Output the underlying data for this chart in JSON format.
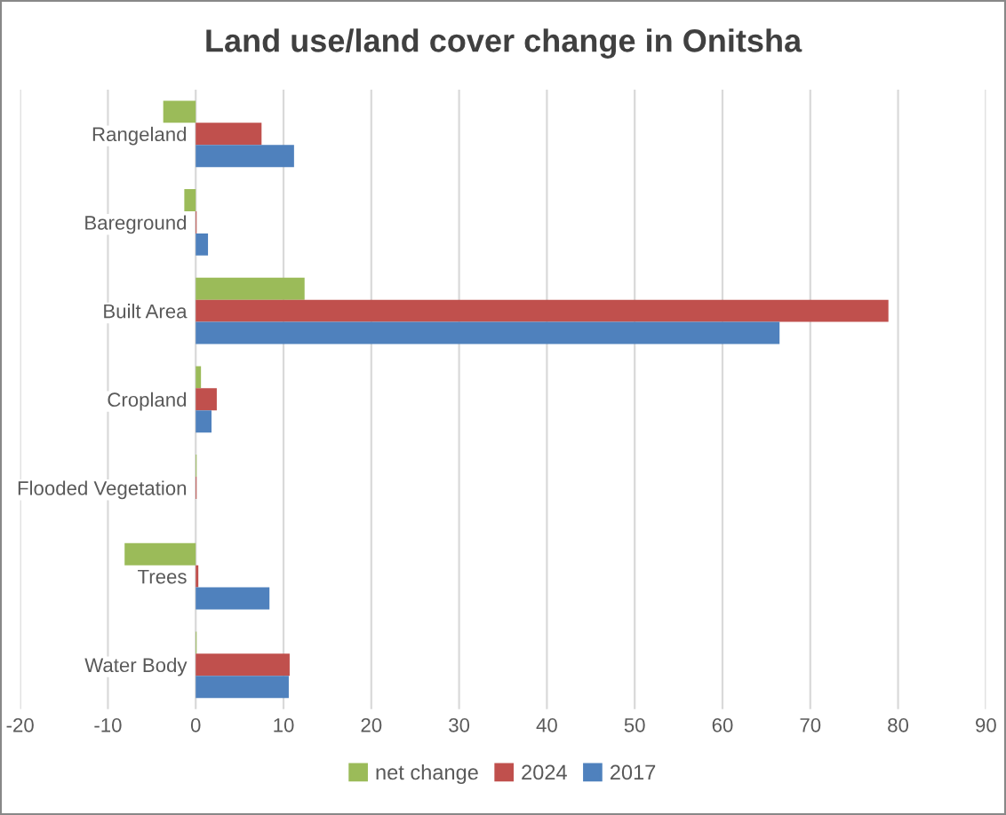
{
  "chart_data": {
    "type": "bar",
    "orientation": "horizontal",
    "title": "Land use/land cover change in Onitsha",
    "categories": [
      "Rangeland",
      "Bareground",
      "Built Area",
      "Cropland",
      "Flooded Vegetation",
      "Trees",
      "Water Body"
    ],
    "series": [
      {
        "name": "net change",
        "color": "#9bbb59",
        "values": [
          -3.7,
          -1.3,
          12.4,
          0.6,
          0.1,
          -8.1,
          0.1
        ]
      },
      {
        "name": "2024",
        "color": "#c0504d",
        "values": [
          7.5,
          0.1,
          78.9,
          2.4,
          0.1,
          0.3,
          10.7
        ]
      },
      {
        "name": "2017",
        "color": "#4f81bd",
        "values": [
          11.2,
          1.4,
          66.5,
          1.8,
          0.0,
          8.4,
          10.6
        ]
      }
    ],
    "xlim": [
      -20,
      90
    ],
    "xticks": [
      -20,
      -10,
      0,
      10,
      20,
      30,
      40,
      50,
      60,
      70,
      80,
      90
    ],
    "grid": "x",
    "legend": "bottom"
  }
}
